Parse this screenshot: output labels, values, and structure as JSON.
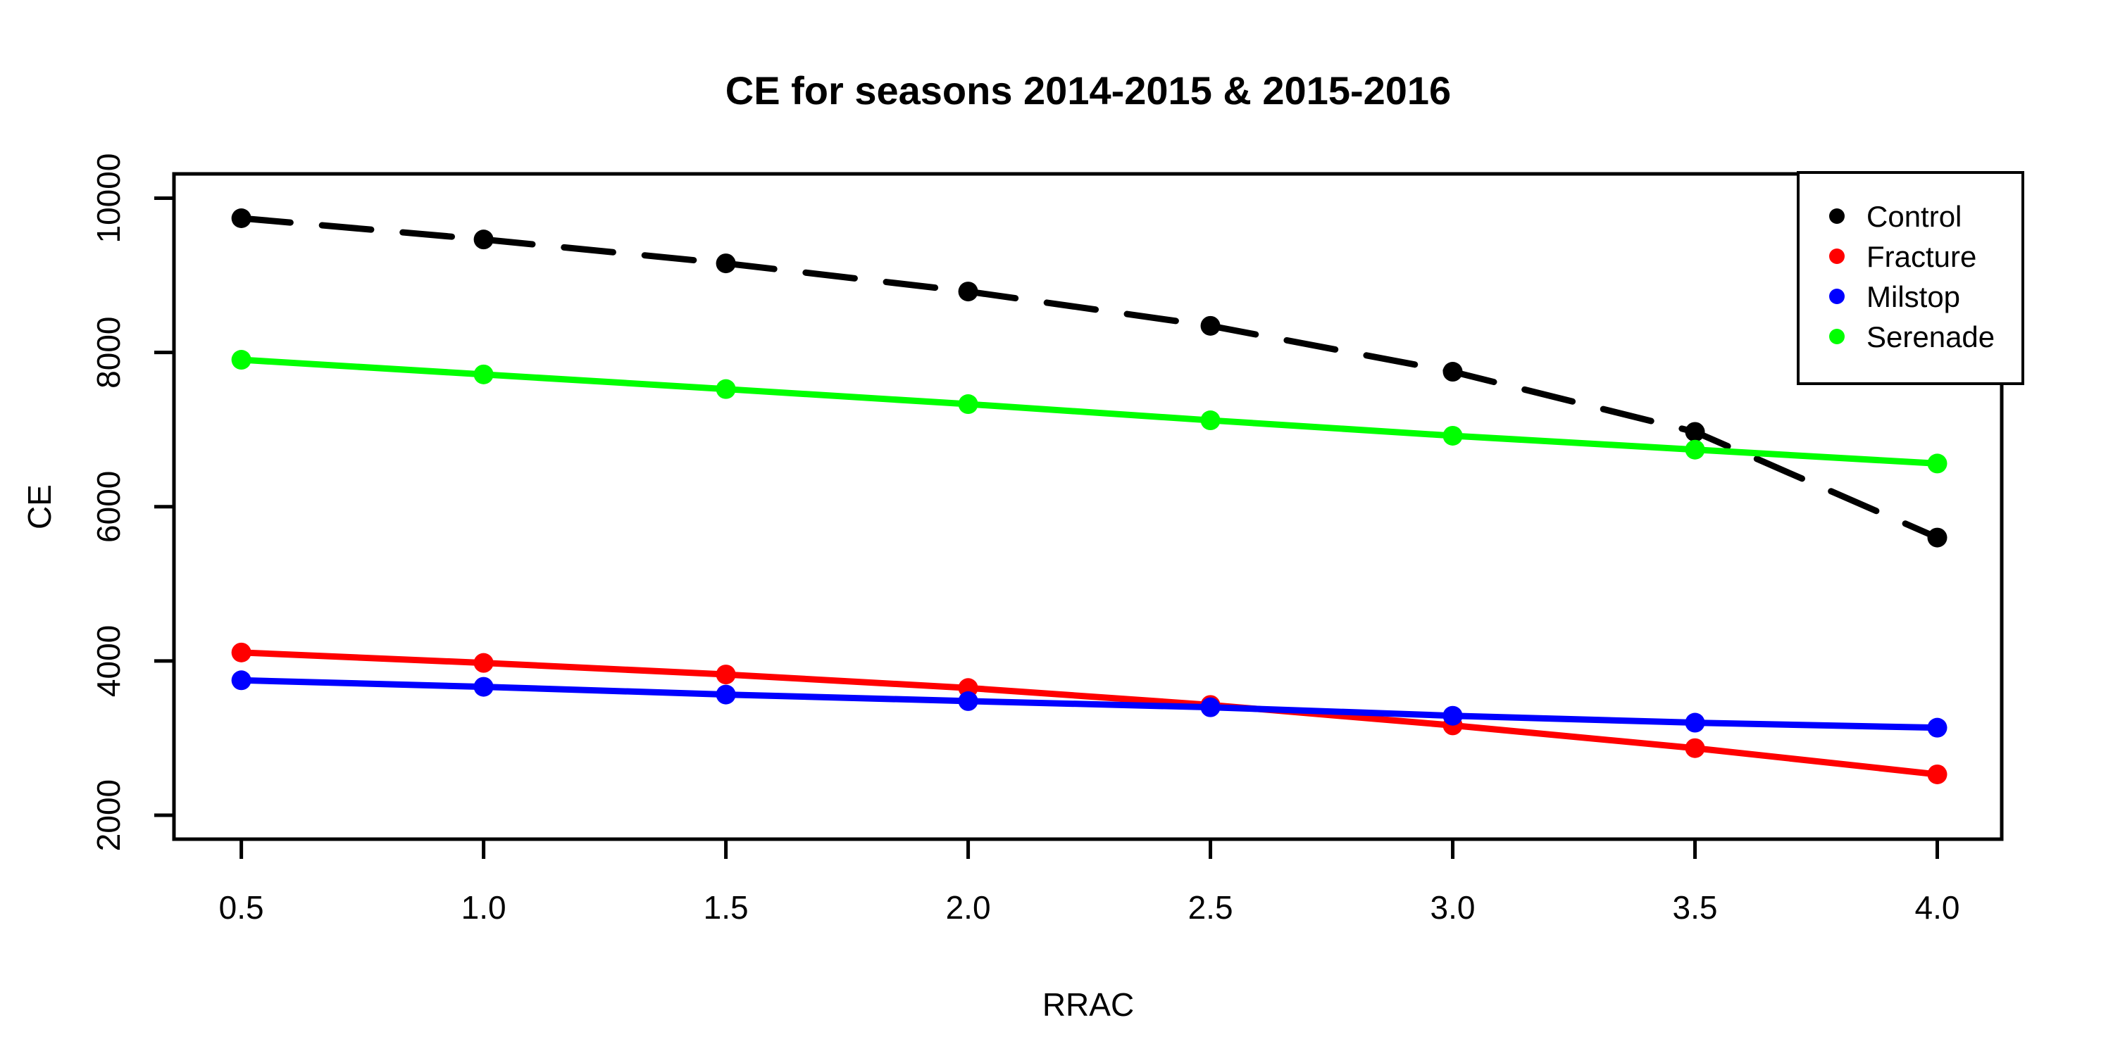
{
  "figure": {
    "background": "#FFFFFF",
    "frame_color": "#000000"
  },
  "chart_data": {
    "type": "line",
    "title": "CE for seasons 2014-2015 & 2015-2016",
    "xlabel": "RRAC",
    "ylabel": "CE",
    "grid": false,
    "legend_position": "top-right",
    "x": [
      0.5,
      1.0,
      1.5,
      2.0,
      2.5,
      3.0,
      3.5,
      4.0
    ],
    "x_tick_labels": [
      "0.5",
      "1.0",
      "1.5",
      "2.0",
      "2.5",
      "3.0",
      "3.5",
      "4.0"
    ],
    "y_ticks": [
      2000,
      4000,
      6000,
      8000,
      10000
    ],
    "y_tick_labels": [
      "2000",
      "4000",
      "6000",
      "8000",
      "10000"
    ],
    "xlim": [
      0.361,
      4.133
    ],
    "ylim": [
      1690,
      10315
    ],
    "marker": "filled-circle",
    "series": [
      {
        "name": "Control",
        "color": "#000000",
        "line_style": "dashed",
        "values": [
          9740,
          9465,
          9155,
          8790,
          8345,
          7750,
          6970,
          5600
        ]
      },
      {
        "name": "Fracture",
        "color": "#FF0000",
        "line_style": "solid",
        "values": [
          4110,
          3975,
          3825,
          3650,
          3430,
          3165,
          2870,
          2530
        ]
      },
      {
        "name": "Milstop",
        "color": "#0000FF",
        "line_style": "solid",
        "values": [
          3750,
          3665,
          3565,
          3480,
          3400,
          3290,
          3200,
          3135
        ]
      },
      {
        "name": "Serenade",
        "color": "#00FF00",
        "line_style": "solid",
        "values": [
          7905,
          7715,
          7525,
          7330,
          7120,
          6920,
          6740,
          6560
        ]
      }
    ]
  }
}
